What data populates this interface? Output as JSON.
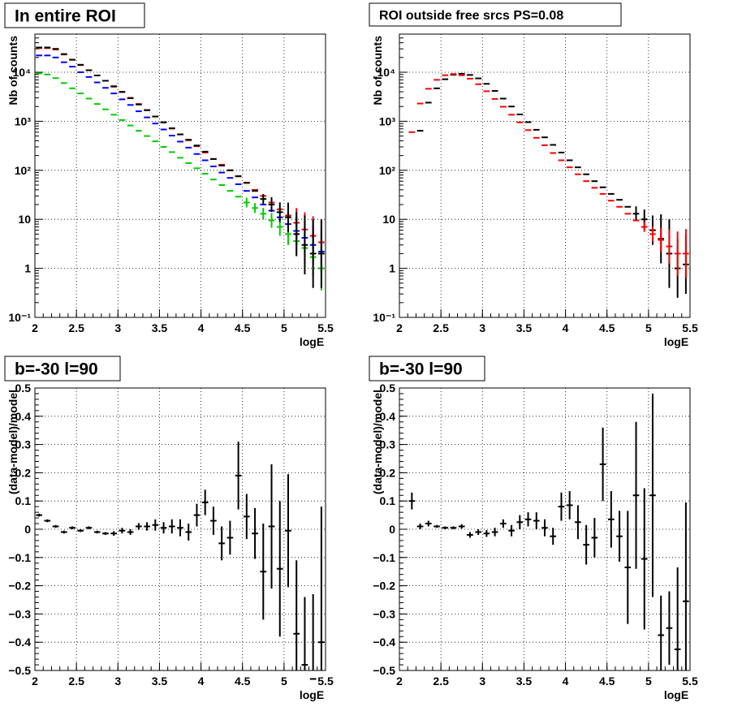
{
  "chart_data": [
    {
      "type": "scatter",
      "title": "In entire ROI",
      "xlabel": "logE",
      "ylabel": "Nb of counts",
      "xlim": [
        2,
        5.5
      ],
      "ylim": [
        0.1,
        60000
      ],
      "yscale": "log",
      "grid": true,
      "x_tick_labels": [
        "2",
        "2.5",
        "3",
        "3.5",
        "4",
        "4.5",
        "5",
        "5.5"
      ],
      "y_tick_labels": [
        "10⁻¹",
        "1",
        "10",
        "10²",
        "10³",
        "10⁴"
      ],
      "x": [
        2.05,
        2.15,
        2.25,
        2.35,
        2.45,
        2.55,
        2.65,
        2.75,
        2.85,
        2.95,
        3.05,
        3.15,
        3.25,
        3.35,
        3.45,
        3.55,
        3.65,
        3.75,
        3.85,
        3.95,
        4.05,
        4.15,
        4.25,
        4.35,
        4.45,
        4.55,
        4.65,
        4.75,
        4.85,
        4.95,
        5.05,
        5.15,
        5.25,
        5.35,
        5.45
      ],
      "series": [
        {
          "color": "#ff0000",
          "values": [
            31000,
            31000,
            29000,
            23000,
            18000,
            14000,
            11000,
            8600,
            6700,
            5200,
            4000,
            3000,
            2250,
            1700,
            1250,
            950,
            710,
            540,
            410,
            310,
            230,
            170,
            130,
            100,
            75,
            55,
            40,
            30,
            22,
            16,
            12,
            8.5,
            6.2,
            4.6,
            3.4
          ],
          "err": [
            0,
            0,
            0,
            0,
            0,
            0,
            0,
            0,
            0,
            0,
            0,
            0,
            0,
            0,
            0,
            0,
            0,
            0,
            0,
            0,
            0,
            0,
            0,
            0,
            0,
            0,
            0,
            0,
            0,
            0,
            0.25,
            0.3,
            0.35,
            0.4,
            0.45
          ]
        },
        {
          "color": "#0000ff",
          "values": [
            22000,
            22000,
            20000,
            16000,
            13000,
            10000,
            8000,
            6200,
            4800,
            3700,
            2800,
            2150,
            1600,
            1200,
            900,
            680,
            510,
            385,
            290,
            215,
            160,
            120,
            90,
            70,
            52,
            38,
            28,
            20,
            15,
            11,
            8,
            5.8,
            4.2,
            3,
            2.2
          ],
          "err": [
            0,
            0,
            0,
            0,
            0,
            0,
            0,
            0,
            0,
            0,
            0,
            0,
            0,
            0,
            0,
            0,
            0,
            0,
            0,
            0,
            0,
            0,
            0,
            0,
            0,
            0,
            0,
            0,
            0,
            0,
            0.25,
            0.3,
            0.35,
            0.4,
            0.45
          ]
        },
        {
          "color": "#00cc00",
          "values": [
            9500,
            9000,
            7600,
            6000,
            4700,
            3700,
            2900,
            2250,
            1750,
            1360,
            1060,
            820,
            640,
            500,
            390,
            300,
            235,
            180,
            140,
            110,
            85,
            65,
            50,
            38,
            29,
            22,
            17,
            13,
            9.5,
            7,
            5,
            3.6,
            2.6,
            1.7,
            1
          ],
          "err": [
            0,
            0,
            0,
            0,
            0,
            0,
            0,
            0,
            0,
            0,
            0,
            0,
            0,
            0,
            0,
            0,
            0,
            0,
            0,
            0,
            0,
            0,
            0,
            0,
            0,
            0.1,
            0.1,
            0.12,
            0.15,
            0.18,
            0.22,
            0.28,
            0.32,
            0.38,
            0.45
          ]
        },
        {
          "color": "#000000",
          "values": [
            32000,
            32000,
            30000,
            23500,
            18000,
            14200,
            11000,
            8600,
            6700,
            5100,
            3950,
            2950,
            2200,
            1680,
            1250,
            950,
            720,
            540,
            420,
            320,
            240,
            170,
            125,
            100,
            76,
            56,
            38,
            26,
            20,
            14,
            11,
            5,
            3,
            2,
            2
          ],
          "err": [
            0,
            0,
            0,
            0,
            0,
            0,
            0,
            0,
            0,
            0,
            0,
            0,
            0,
            0,
            0,
            0,
            0,
            0,
            0,
            0,
            0,
            0,
            0,
            0,
            0,
            0,
            0,
            0.1,
            0.15,
            0.2,
            0.3,
            0.45,
            0.6,
            0.7,
            0.7
          ]
        }
      ]
    },
    {
      "type": "scatter",
      "title": "ROI outside free srcs PS=0.08",
      "xlabel": "logE",
      "ylabel": "Nb of counts",
      "xlim": [
        2,
        5.5
      ],
      "ylim": [
        0.1,
        60000
      ],
      "yscale": "log",
      "grid": true,
      "x_tick_labels": [
        "2",
        "2.5",
        "3",
        "3.5",
        "4",
        "4.5",
        "5",
        "5.5"
      ],
      "y_tick_labels": [
        "10⁻¹",
        "1",
        "10",
        "10²",
        "10³",
        "10⁴"
      ],
      "x": [
        2.15,
        2.25,
        2.35,
        2.45,
        2.55,
        2.65,
        2.75,
        2.85,
        2.95,
        3.05,
        3.15,
        3.25,
        3.35,
        3.45,
        3.55,
        3.65,
        3.75,
        3.85,
        3.95,
        4.05,
        4.15,
        4.25,
        4.35,
        4.45,
        4.55,
        4.65,
        4.75,
        4.85,
        4.95,
        5.05,
        5.15,
        5.25,
        5.35,
        5.45
      ],
      "series": [
        {
          "color": "#000000",
          "values": [
            640,
            2400,
            4700,
            7200,
            8900,
            9300,
            8800,
            7500,
            5800,
            4150,
            2900,
            2000,
            1380,
            960,
            670,
            470,
            330,
            230,
            160,
            115,
            83,
            60,
            45,
            33,
            25,
            18,
            13,
            10,
            6,
            4,
            2,
            1,
            1.2
          ],
          "x_offset": 1,
          "err": [
            0,
            0,
            0,
            0,
            0,
            0,
            0,
            0,
            0,
            0,
            0,
            0,
            0,
            0,
            0,
            0,
            0,
            0,
            0,
            0,
            0,
            0,
            0,
            0,
            0,
            0,
            0,
            0.15,
            0.2,
            0.3,
            0.5,
            0.7,
            0.6
          ]
        },
        {
          "color": "#ff0000",
          "values": [
            600,
            2300,
            4600,
            7000,
            8700,
            9200,
            8700,
            7400,
            5700,
            4100,
            2850,
            1980,
            1360,
            950,
            660,
            460,
            325,
            225,
            160,
            115,
            83,
            60,
            44,
            33,
            24,
            18,
            13,
            9.5,
            7,
            5,
            3.8,
            2.8,
            2,
            2
          ],
          "err": [
            0,
            0,
            0,
            0,
            0,
            0,
            0,
            0,
            0,
            0,
            0,
            0,
            0,
            0,
            0,
            0,
            0,
            0,
            0,
            0,
            0,
            0,
            0,
            0,
            0,
            0,
            0,
            0,
            0.1,
            0.15,
            0.25,
            0.35,
            0.45,
            0.5
          ]
        }
      ]
    },
    {
      "type": "scatter",
      "title": "b=-30 l=90",
      "xlabel": "logE",
      "ylabel": "(data-model)/model",
      "xlim": [
        2,
        5.5
      ],
      "ylim": [
        -0.5,
        0.5
      ],
      "grid": true,
      "x_tick_labels": [
        "2",
        "2.5",
        "3",
        "3.5",
        "4",
        "4.5",
        "5",
        "5.5"
      ],
      "y_tick_labels": [
        "−0.5",
        "−0.4",
        "−0.3",
        "−0.2",
        "−0.1",
        "0",
        "0.1",
        "0.2",
        "0.3",
        "0.4",
        "0.5"
      ],
      "series": [
        {
          "color": "#000000",
          "x": [
            2.05,
            2.15,
            2.25,
            2.35,
            2.45,
            2.55,
            2.65,
            2.75,
            2.85,
            2.95,
            3.05,
            3.15,
            3.25,
            3.35,
            3.45,
            3.55,
            3.65,
            3.75,
            3.85,
            3.95,
            4.05,
            4.15,
            4.25,
            4.35,
            4.45,
            4.55,
            4.65,
            4.75,
            4.85,
            4.95,
            5.05,
            5.15,
            5.25,
            5.35,
            5.45
          ],
          "values": [
            0.05,
            0.03,
            0.01,
            -0.01,
            0.005,
            -0.005,
            0.005,
            -0.01,
            -0.015,
            -0.015,
            -0.005,
            -0.01,
            0.01,
            0.01,
            0.015,
            0.005,
            0.01,
            0.005,
            -0.01,
            0.05,
            0.095,
            0.03,
            -0.05,
            -0.03,
            0.19,
            0.045,
            -0.015,
            -0.15,
            0.01,
            -0.14,
            -0.005,
            -0.37,
            -0.48,
            -0.53,
            -0.4
          ],
          "err": [
            0.005,
            0.005,
            0.005,
            0.005,
            0.005,
            0.005,
            0.005,
            0.005,
            0.005,
            0.008,
            0.01,
            0.01,
            0.012,
            0.015,
            0.02,
            0.02,
            0.025,
            0.03,
            0.03,
            0.04,
            0.045,
            0.05,
            0.06,
            0.06,
            0.12,
            0.08,
            0.09,
            0.17,
            0.22,
            0.24,
            0.2,
            0.26,
            0.24,
            0.3,
            0.48
          ]
        }
      ]
    },
    {
      "type": "scatter",
      "title": "b=-30 l=90",
      "xlabel": "logE",
      "ylabel": "(data-model)/model",
      "xlim": [
        2,
        5.5
      ],
      "ylim": [
        -0.5,
        0.5
      ],
      "grid": true,
      "x_tick_labels": [
        "2",
        "2.5",
        "3",
        "3.5",
        "4",
        "4.5",
        "5",
        "5.5"
      ],
      "y_tick_labels": [
        "−0.5",
        "−0.4",
        "−0.3",
        "−0.2",
        "−0.1",
        "0",
        "0.1",
        "0.2",
        "0.3",
        "0.4",
        "0.5"
      ],
      "series": [
        {
          "color": "#000000",
          "x": [
            2.15,
            2.25,
            2.35,
            2.45,
            2.55,
            2.65,
            2.75,
            2.85,
            2.95,
            3.05,
            3.15,
            3.25,
            3.35,
            3.45,
            3.55,
            3.65,
            3.75,
            3.85,
            3.95,
            4.05,
            4.15,
            4.25,
            4.35,
            4.45,
            4.55,
            4.65,
            4.75,
            4.85,
            4.95,
            5.05,
            5.15,
            5.25,
            5.35,
            5.45
          ],
          "values": [
            0.1,
            0.01,
            0.02,
            0.01,
            0.005,
            0.005,
            0.01,
            -0.02,
            -0.01,
            -0.015,
            -0.01,
            0.02,
            -0.005,
            0.025,
            0.035,
            0.03,
            0.005,
            -0.025,
            0.08,
            0.085,
            0.025,
            -0.055,
            -0.03,
            0.23,
            0.035,
            -0.025,
            -0.135,
            0.12,
            -0.105,
            0.12,
            -0.375,
            -0.35,
            -0.425,
            -0.255
          ],
          "err": [
            0.03,
            0.01,
            0.01,
            0.005,
            0.005,
            0.005,
            0.008,
            0.01,
            0.01,
            0.012,
            0.015,
            0.015,
            0.02,
            0.025,
            0.025,
            0.03,
            0.03,
            0.03,
            0.05,
            0.05,
            0.06,
            0.07,
            0.07,
            0.13,
            0.1,
            0.09,
            0.2,
            0.26,
            0.25,
            0.36,
            0.14,
            0.13,
            0.29,
            0.35
          ]
        }
      ]
    }
  ]
}
